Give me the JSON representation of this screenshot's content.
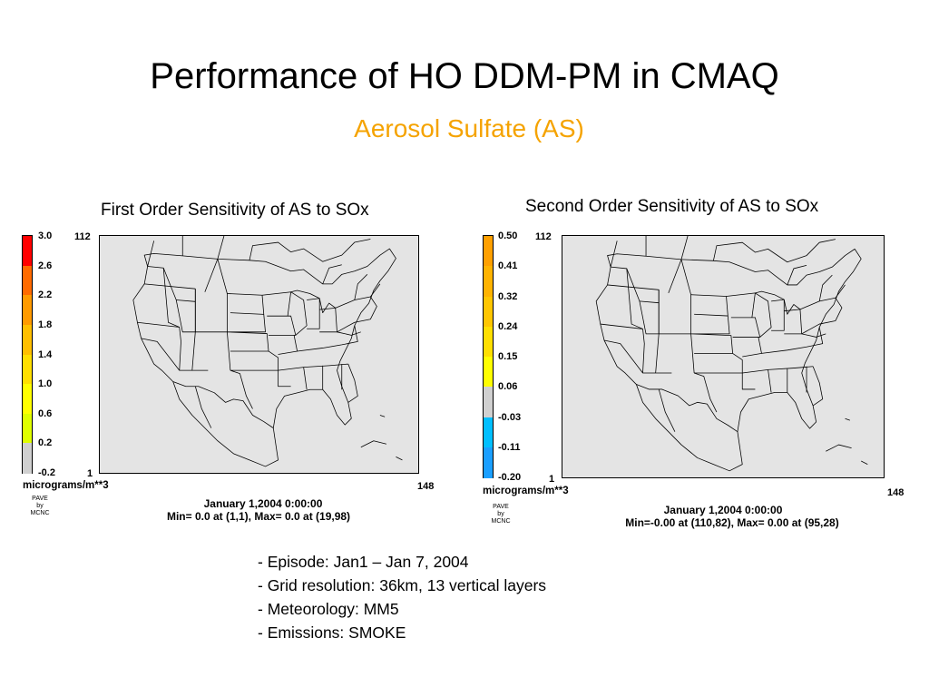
{
  "slide": {
    "title": "Performance of HO DDM-PM in CMAQ",
    "subtitle": "Aerosol Sulfate (AS)",
    "subtitle_color": "#f5a300"
  },
  "panels": [
    {
      "title": "First Order Sensitivity of AS to SOx",
      "colorbar": {
        "labels": [
          "3.0",
          "2.6",
          "2.2",
          "1.8",
          "1.4",
          "1.0",
          "0.6",
          "0.2",
          "-0.2"
        ],
        "colors": [
          "#ff0000",
          "#ff6a00",
          "#ff9a00",
          "#ffbf00",
          "#ffdf00",
          "#ffff00",
          "#dfff00",
          "#d0d0d0"
        ]
      },
      "grid_y_max": "112",
      "grid_y_min": "1",
      "grid_x_max": "148",
      "units": "micrograms/m**3",
      "pave_text": [
        "PAVE",
        "by",
        "MCNC"
      ],
      "date": "January 1,2004 0:00:00",
      "minmax": "Min=  0.0 at (1,1), Max=  0.0 at (19,98)"
    },
    {
      "title": "Second Order Sensitivity of AS to SOx",
      "colorbar": {
        "labels": [
          "0.50",
          "0.41",
          "0.32",
          "0.24",
          "0.15",
          "0.06",
          "-0.03",
          "-0.11",
          "-0.20"
        ],
        "colors": [
          "#ffa000",
          "#ffb300",
          "#ffc600",
          "#ffdf00",
          "#ffff00",
          "#d0d0d0",
          "#00bfff",
          "#1a9fff"
        ]
      },
      "grid_y_max": "112",
      "grid_y_min": "1",
      "grid_x_max": "148",
      "units": "micrograms/m**3",
      "pave_text": [
        "PAVE",
        "by",
        "MCNC"
      ],
      "date": "January 1,2004 0:00:00",
      "minmax": "Min=-0.00 at (110,82), Max= 0.00 at (95,28)"
    }
  ],
  "notes": [
    "- Episode: Jan1 – Jan 7, 2004",
    "- Grid resolution: 36km, 13 vertical layers",
    "- Meteorology: MM5",
    "- Emissions: SMOKE"
  ]
}
